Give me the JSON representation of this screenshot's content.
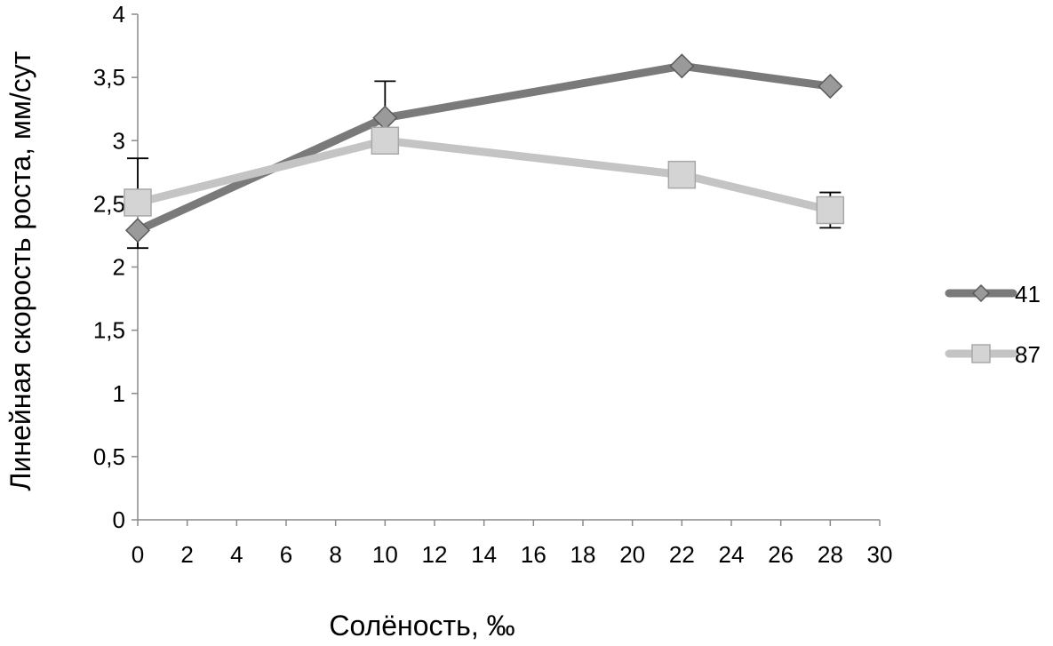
{
  "chart_data": {
    "type": "line",
    "title": "",
    "xlabel": "Солёность, ‰",
    "ylabel": "Линейная скорость роста, мм/сут",
    "xlim": [
      0,
      30
    ],
    "ylim": [
      0,
      4
    ],
    "x_ticks": [
      "0",
      "2",
      "4",
      "6",
      "8",
      "10",
      "12",
      "14",
      "16",
      "18",
      "20",
      "22",
      "24",
      "26",
      "28",
      "30"
    ],
    "y_ticks": [
      "0",
      "0,5",
      "1",
      "1,5",
      "2",
      "2,5",
      "3",
      "3,5",
      "4"
    ],
    "grid": false,
    "legend_position": "right",
    "series": [
      {
        "name": "41",
        "color": "#7a7a7a",
        "marker": "diamond",
        "x": [
          0,
          10,
          22,
          28
        ],
        "y": [
          2.29,
          3.18,
          3.59,
          3.43
        ],
        "error_upper": [
          null,
          0.29,
          null,
          null
        ],
        "error_lower": [
          0.14,
          null,
          null,
          null
        ]
      },
      {
        "name": "87",
        "color": "#c4c4c4",
        "marker": "square",
        "x": [
          0,
          10,
          22,
          28
        ],
        "y": [
          2.51,
          3.0,
          2.73,
          2.45
        ],
        "error_upper": [
          0.35,
          null,
          null,
          0.14
        ],
        "error_lower": [
          null,
          null,
          null,
          0.14
        ]
      }
    ]
  }
}
